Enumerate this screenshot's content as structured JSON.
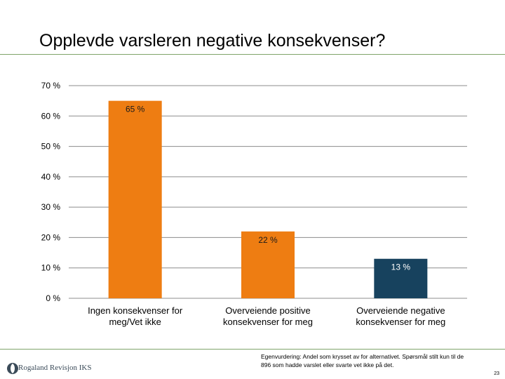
{
  "slide": {
    "title": "Opplevde varsleren negative konsekvenser?",
    "note_line1": "Egenvurdering: Andel som krysset av for alternativet. Spørsmål stilt kun til de",
    "note_line2": "896 som hadde varslet eller svarte vet ikke på det.",
    "page_number": "23",
    "logo_text": "Rogaland Revisjon IKS"
  },
  "chart_data": {
    "type": "bar",
    "categories": [
      "Ingen konsekvenser for meg/Vet ikke",
      "Overveiende positive konsekvenser for meg",
      "Overveiende negative konsekvenser for meg"
    ],
    "values": [
      65,
      22,
      13
    ],
    "data_labels": [
      "65 %",
      "22 %",
      "13 %"
    ],
    "bar_colors": [
      "#ee7d12",
      "#ee7d12",
      "#17425e"
    ],
    "ylim": [
      0,
      70
    ],
    "yticks": [
      0,
      10,
      20,
      30,
      40,
      50,
      60,
      70
    ],
    "ytick_labels": [
      "0 %",
      "10 %",
      "20 %",
      "30 %",
      "40 %",
      "50 %",
      "60 %",
      "70 %"
    ],
    "grid": true,
    "legend": "none",
    "title": "",
    "xlabel": "",
    "ylabel": ""
  }
}
